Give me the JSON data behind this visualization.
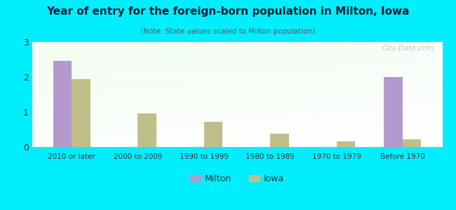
{
  "title": "Year of entry for the foreign-born population in Milton, Iowa",
  "subtitle": "(Note: State values scaled to Milton population)",
  "categories": [
    "2010 or later",
    "2000 to 2009",
    "1990 to 1999",
    "1980 to 1989",
    "1970 to 1979",
    "Before 1970"
  ],
  "milton_values": [
    2.45,
    0,
    0,
    0,
    0,
    2.0
  ],
  "iowa_values": [
    1.95,
    0.97,
    0.72,
    0.38,
    0.17,
    0.22
  ],
  "milton_color": "#b399cc",
  "iowa_color": "#c0bf8a",
  "background_color": "#00eeff",
  "ylim": [
    0,
    3
  ],
  "yticks": [
    0,
    1,
    2,
    3
  ],
  "bar_width": 0.28,
  "legend_labels": [
    "Milton",
    "Iowa"
  ],
  "watermark": "City-Data.com",
  "title_fontsize": 11,
  "subtitle_fontsize": 7.5,
  "tick_fontsize": 7.5
}
